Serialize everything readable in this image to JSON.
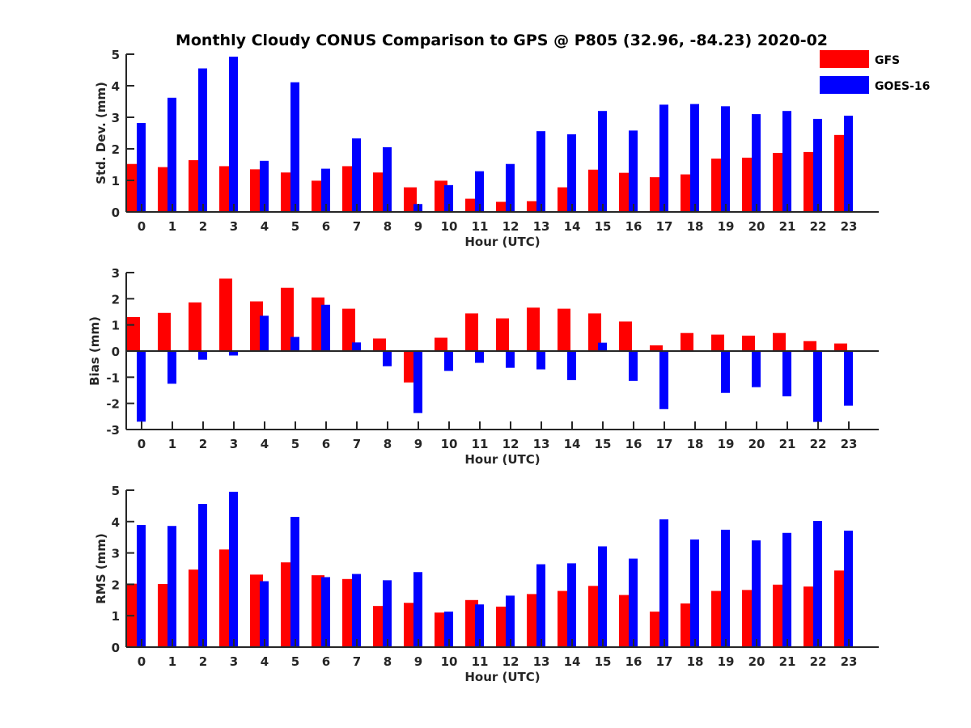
{
  "chart_data": {
    "type": "bar",
    "title": "Monthly Cloudy CONUS Comparison to GPS @ P805 (32.96, -84.23) 2020-02",
    "legend": {
      "placement": "top-right",
      "entries": [
        {
          "name": "GFS",
          "color": "#ff0000"
        },
        {
          "name": "GOES-16",
          "color": "#0000ff"
        }
      ]
    },
    "categories": [
      "0",
      "1",
      "2",
      "3",
      "4",
      "5",
      "6",
      "7",
      "8",
      "9",
      "10",
      "11",
      "12",
      "13",
      "14",
      "15",
      "16",
      "17",
      "18",
      "19",
      "20",
      "21",
      "22",
      "23"
    ],
    "panels": [
      {
        "id": "std",
        "xlabel": "Hour (UTC)",
        "ylabel": "Std. Dev. (mm)",
        "ylim": [
          0,
          5
        ],
        "yticks": [
          0,
          1,
          2,
          3,
          4,
          5
        ],
        "series": [
          {
            "name": "GFS",
            "values": [
              1.52,
              1.42,
              1.64,
              1.45,
              1.35,
              1.25,
              0.99,
              1.45,
              1.25,
              0.78,
              0.99,
              0.42,
              0.32,
              0.34,
              0.78,
              1.34,
              1.24,
              1.1,
              1.19,
              1.69,
              1.72,
              1.87,
              1.9,
              2.44
            ]
          },
          {
            "name": "GOES-16",
            "values": [
              2.82,
              3.62,
              4.55,
              4.92,
              1.62,
              4.11,
              1.37,
              2.33,
              2.05,
              0.25,
              0.85,
              1.29,
              1.52,
              2.56,
              2.46,
              3.2,
              2.58,
              3.4,
              3.42,
              3.35,
              3.1,
              3.2,
              2.95,
              3.05
            ]
          }
        ]
      },
      {
        "id": "bias",
        "xlabel": "Hour (UTC)",
        "ylabel": "Bias (mm)",
        "ylim": [
          -3,
          3
        ],
        "yticks": [
          -3,
          -2,
          -1,
          0,
          1,
          2,
          3
        ],
        "series": [
          {
            "name": "GFS",
            "values": [
              1.3,
              1.46,
              1.86,
              2.77,
              1.9,
              2.42,
              2.05,
              1.62,
              0.48,
              -1.2,
              0.51,
              1.44,
              1.25,
              1.66,
              1.62,
              1.44,
              1.13,
              0.22,
              0.69,
              0.63,
              0.59,
              0.69,
              0.38,
              0.29
            ]
          },
          {
            "name": "GOES-16",
            "values": [
              -2.7,
              -1.25,
              -0.33,
              -0.17,
              1.35,
              0.54,
              1.77,
              0.33,
              -0.58,
              -2.37,
              -0.76,
              -0.45,
              -0.64,
              -0.7,
              -1.11,
              0.32,
              -1.14,
              -2.22,
              0.03,
              -1.6,
              -1.38,
              -1.73,
              -2.71,
              -2.09
            ]
          }
        ]
      },
      {
        "id": "rms",
        "xlabel": "Hour (UTC)",
        "ylabel": "RMS (mm)",
        "ylim": [
          0,
          5
        ],
        "yticks": [
          0,
          1,
          2,
          3,
          4,
          5
        ],
        "series": [
          {
            "name": "GFS",
            "values": [
              2.02,
              2.01,
              2.47,
              3.11,
              2.31,
              2.7,
              2.29,
              2.17,
              1.31,
              1.41,
              1.1,
              1.5,
              1.29,
              1.69,
              1.79,
              1.95,
              1.66,
              1.13,
              1.39,
              1.79,
              1.82,
              1.99,
              1.93,
              2.44
            ]
          },
          {
            "name": "GOES-16",
            "values": [
              3.89,
              3.86,
              4.56,
              4.95,
              2.1,
              4.15,
              2.23,
              2.33,
              2.13,
              2.39,
              1.13,
              1.36,
              1.64,
              2.64,
              2.67,
              3.21,
              2.82,
              4.07,
              3.43,
              3.74,
              3.4,
              3.64,
              4.02,
              3.71
            ]
          }
        ]
      }
    ]
  }
}
